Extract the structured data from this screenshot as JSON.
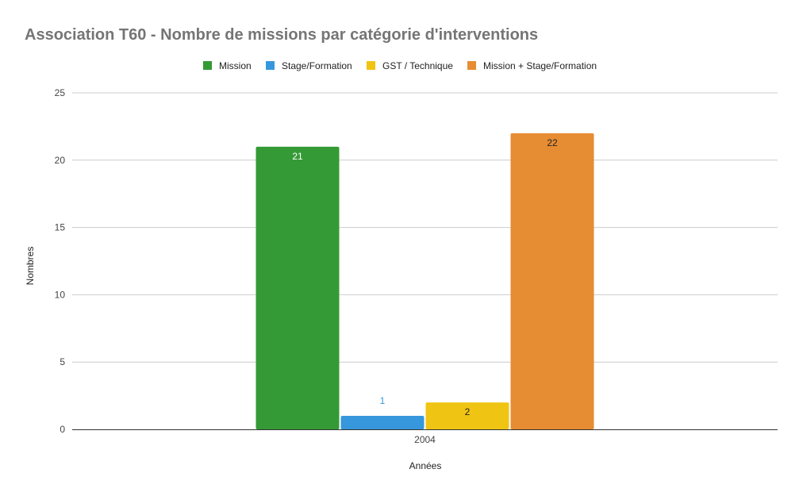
{
  "chart_data": {
    "type": "bar",
    "title": "Association T60 - Nombre de missions par catégorie d'interventions",
    "xlabel": "Années",
    "ylabel": "Nombres",
    "categories": [
      "2004"
    ],
    "ylim": [
      0,
      25
    ],
    "yticks": [
      0,
      5,
      10,
      15,
      20,
      25
    ],
    "grid": true,
    "legend_position": "top",
    "series": [
      {
        "name": "Mission",
        "values": [
          21
        ],
        "color": "#349a35",
        "label_color": "#ffffff",
        "label_position": "inside"
      },
      {
        "name": "Stage/Formation",
        "values": [
          1
        ],
        "color": "#3797dc",
        "label_color": "#3797dc",
        "label_position": "above"
      },
      {
        "name": "GST / Technique",
        "values": [
          2
        ],
        "color": "#f0c413",
        "label_color": "#222222",
        "label_position": "inside"
      },
      {
        "name": "Mission + Stage/Formation",
        "values": [
          22
        ],
        "color": "#e68c33",
        "label_color": "#222222",
        "label_position": "inside"
      }
    ]
  }
}
